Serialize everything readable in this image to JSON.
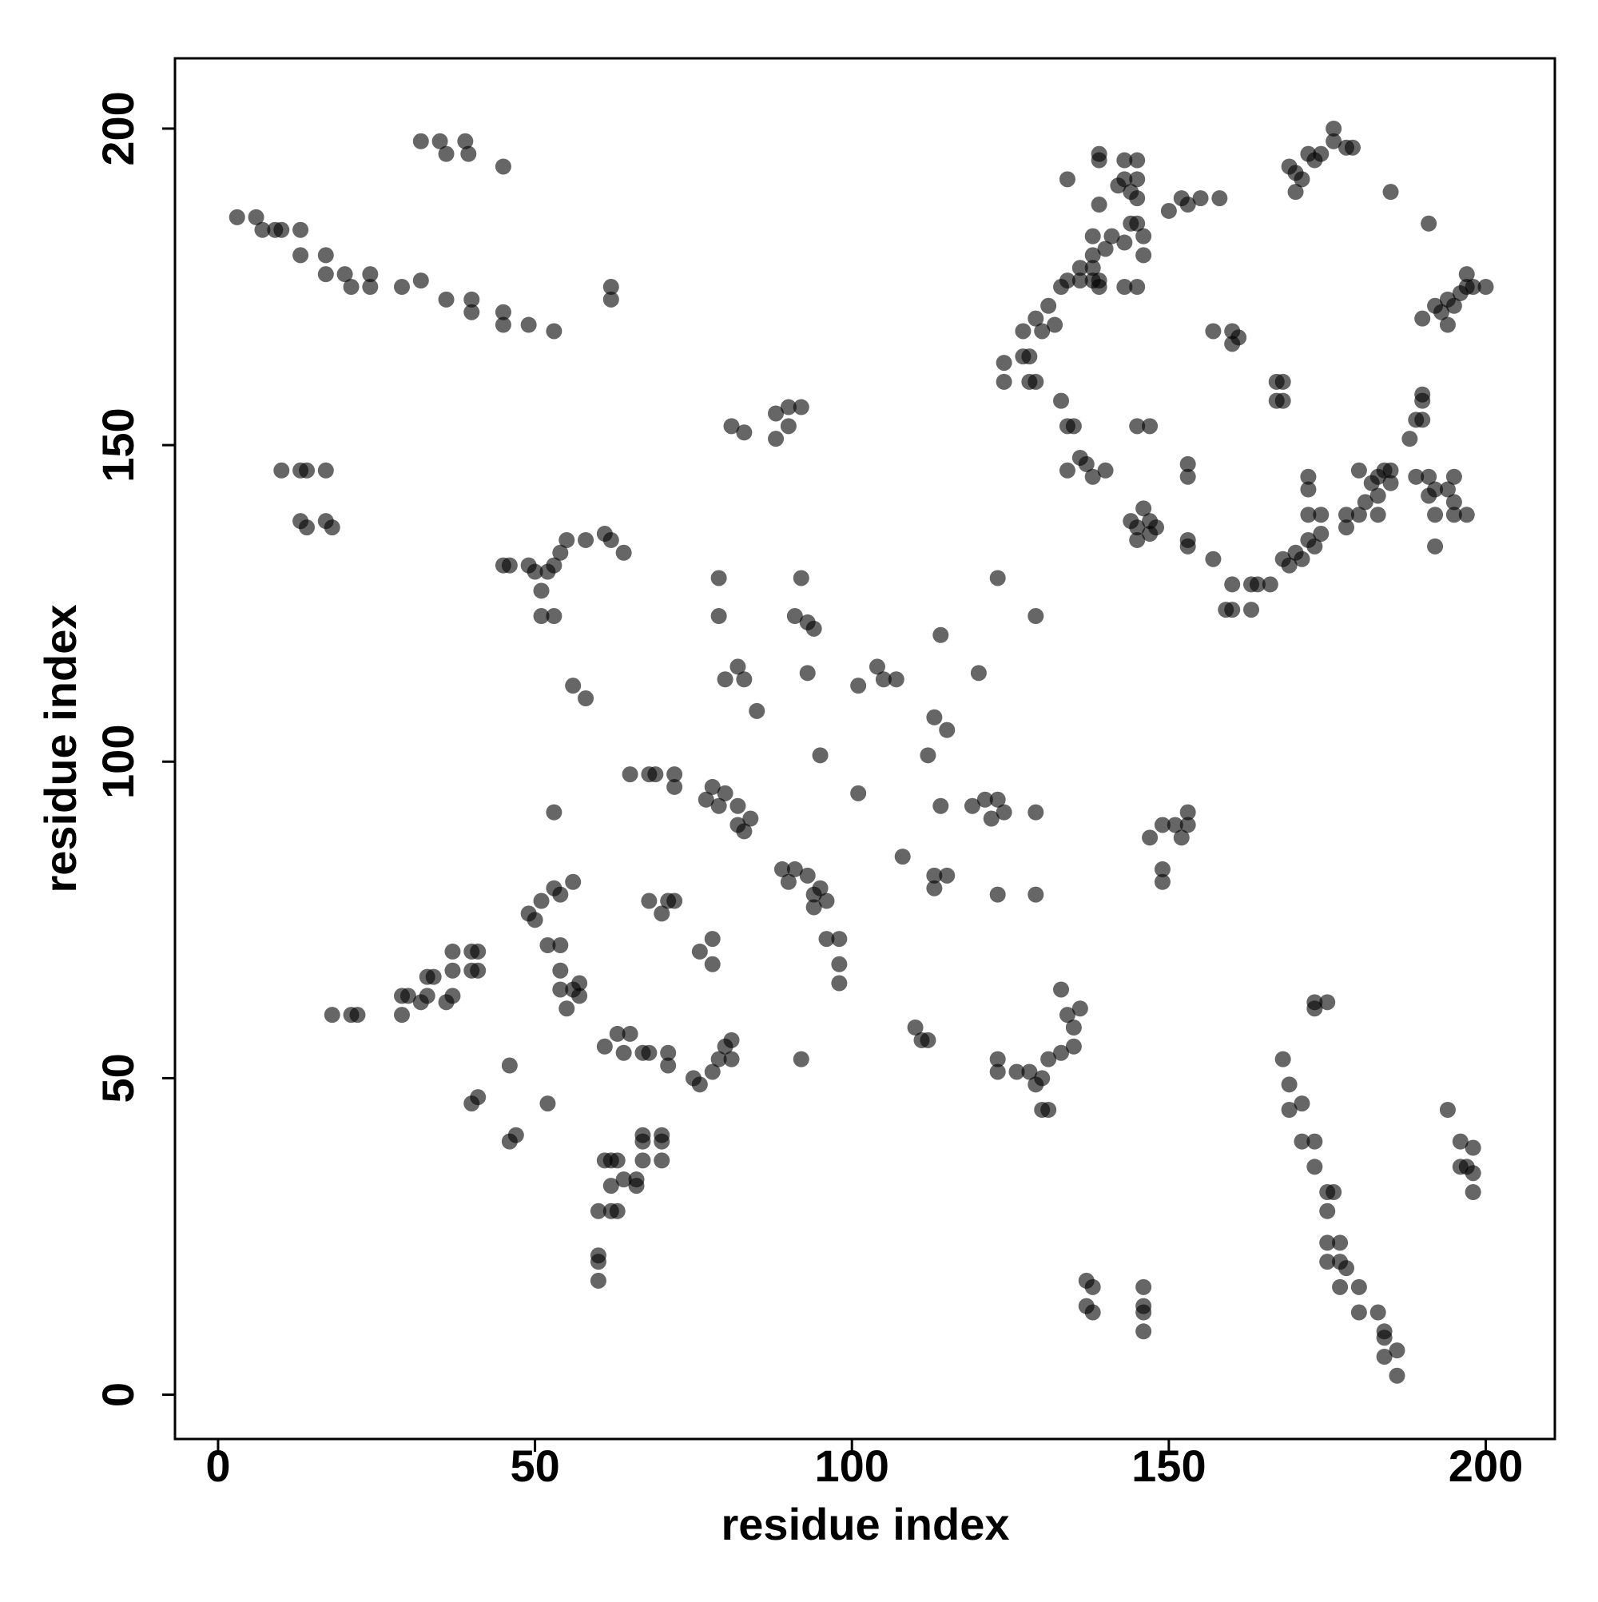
{
  "chart_data": {
    "type": "scatter",
    "xlabel": "residue index",
    "ylabel": "residue index",
    "xlim": [
      -6.8,
      210.9
    ],
    "ylim": [
      -7.0,
      211.1
    ],
    "xticks": [
      0,
      50,
      100,
      150,
      200
    ],
    "yticks": [
      0,
      50,
      100,
      150,
      200
    ],
    "color": "#000000",
    "alpha": 0.6,
    "grid": false,
    "x": [
      32,
      35,
      36,
      39,
      39.5,
      45,
      3,
      6,
      7,
      9,
      10,
      13,
      13,
      17,
      17,
      20,
      21,
      24,
      24,
      29,
      32,
      36,
      40,
      40,
      45,
      45,
      49,
      53,
      62,
      62,
      10,
      13,
      14,
      17,
      13,
      14,
      17,
      18,
      45,
      46,
      49,
      50,
      51,
      52,
      53,
      54,
      55,
      58,
      61,
      62,
      64,
      51,
      53,
      56,
      58,
      79,
      79,
      81,
      83,
      88,
      90,
      92,
      88,
      90,
      92,
      91,
      93,
      94,
      93,
      80,
      82,
      83,
      85,
      95,
      101,
      104,
      105,
      107,
      114,
      120,
      123,
      129,
      113,
      112,
      115,
      65,
      68,
      69,
      72,
      72,
      78,
      77,
      79,
      80,
      82,
      82,
      84,
      83,
      53,
      101,
      108,
      114,
      119,
      121,
      123,
      124,
      122,
      129,
      113,
      115,
      113,
      123,
      129,
      89,
      90,
      91,
      93,
      94,
      95,
      94,
      96,
      96,
      98,
      98,
      98,
      92,
      49,
      51,
      53,
      54,
      56,
      50,
      52,
      54,
      54,
      54,
      56,
      55,
      57,
      57,
      68,
      71,
      72,
      70,
      76,
      78,
      78,
      18,
      21,
      22,
      29,
      29,
      30,
      32,
      33,
      33,
      34,
      36,
      37,
      37,
      37,
      40,
      41,
      41,
      40,
      40,
      41,
      46,
      46,
      47,
      52,
      61,
      63,
      65,
      64,
      67,
      68,
      71,
      71,
      75,
      76,
      78,
      79,
      80,
      81,
      81,
      61,
      62,
      63,
      62,
      64,
      66,
      66,
      67,
      67,
      70,
      70,
      67,
      70,
      60,
      62,
      63,
      60,
      60,
      60,
      110,
      111,
      112,
      126,
      128,
      123,
      123,
      129,
      130,
      131,
      131,
      130,
      133,
      135,
      135,
      134,
      136,
      133,
      147,
      149,
      151,
      153,
      153,
      152,
      149,
      149,
      137,
      138,
      137,
      138,
      146,
      146,
      146,
      146,
      168,
      169,
      169,
      171,
      171,
      173,
      173,
      175,
      176,
      175,
      175,
      177,
      175,
      177,
      178,
      177,
      180,
      180,
      183,
      184,
      184,
      184,
      186,
      186,
      194,
      196,
      196,
      197,
      198,
      198,
      198,
      173,
      175,
      173,
      134,
      139,
      139,
      143,
      145,
      143,
      145,
      142,
      144,
      145,
      139,
      141,
      138,
      140,
      138,
      136,
      138,
      144,
      145,
      146,
      146,
      143,
      136,
      138,
      139,
      139,
      143,
      145,
      134,
      133,
      131,
      129,
      127,
      130,
      132,
      124,
      124,
      127,
      128,
      128,
      129,
      133,
      134,
      135,
      145,
      147,
      134,
      136,
      137,
      138,
      140,
      144,
      145,
      147,
      148,
      145,
      146,
      147,
      150,
      152,
      153,
      155,
      158,
      153,
      153,
      153,
      153,
      157,
      157,
      160,
      161,
      160,
      159,
      160,
      160,
      163,
      163,
      164,
      166,
      167,
      168,
      167,
      168,
      169,
      170,
      171,
      172,
      173,
      174,
      176,
      176,
      178,
      179,
      170,
      168,
      169,
      170,
      171,
      172,
      173,
      172,
      174,
      172,
      172,
      174,
      178,
      178,
      180,
      181,
      180,
      182,
      183,
      183,
      184,
      185,
      185,
      183,
      188,
      189,
      190,
      190,
      190,
      189,
      191,
      192,
      191,
      192,
      192,
      195,
      195,
      195,
      197,
      194,
      190,
      192,
      193,
      194,
      195,
      196,
      197,
      197,
      198,
      200,
      194,
      191,
      185
    ],
    "values": [
      198,
      198,
      196,
      198,
      196,
      194,
      186,
      186,
      184,
      184,
      184,
      184,
      180,
      180,
      177,
      177,
      175,
      177,
      175,
      175,
      176,
      173,
      173,
      171,
      171,
      169,
      169,
      168,
      175,
      173,
      146,
      146,
      146,
      146,
      138,
      137,
      138,
      137,
      131,
      131,
      131,
      130,
      127,
      130,
      131,
      133,
      135,
      135,
      136,
      135,
      133,
      123,
      123,
      112,
      110,
      129,
      123,
      153,
      152,
      151,
      156,
      156,
      155,
      153,
      129,
      123,
      122,
      121,
      114,
      113,
      115,
      113,
      108,
      101,
      112,
      115,
      113,
      113,
      120,
      114,
      129,
      123,
      107,
      101,
      105,
      98,
      98,
      98,
      98,
      96,
      96,
      94,
      93,
      95,
      93,
      90,
      91,
      89,
      92,
      95,
      85,
      93,
      93,
      94,
      94,
      92,
      91,
      92,
      82,
      82,
      80,
      79,
      79,
      83,
      81,
      83,
      82,
      79,
      80,
      77,
      78,
      72,
      72,
      68,
      65,
      53,
      76,
      78,
      80,
      79,
      81,
      75,
      71,
      71,
      67,
      64,
      64,
      61,
      65,
      63,
      78,
      78,
      78,
      76,
      70,
      72,
      68,
      60,
      60,
      60,
      60,
      63,
      63,
      62,
      63,
      66,
      66,
      62,
      63,
      67,
      70,
      70,
      70,
      67,
      67,
      46,
      47,
      52,
      40,
      41,
      46,
      55,
      57,
      57,
      54,
      54,
      54,
      54,
      52,
      50,
      49,
      51,
      53,
      55,
      56,
      53,
      37,
      37,
      37,
      33,
      34,
      34,
      33,
      37,
      41,
      41,
      37,
      40,
      40,
      29,
      29,
      29,
      22,
      21,
      18,
      58,
      56,
      56,
      51,
      51,
      53,
      51,
      49,
      50,
      53,
      45,
      45,
      54,
      55,
      58,
      60,
      61,
      64,
      88,
      90,
      90,
      92,
      90,
      88,
      83,
      81,
      18,
      17,
      14,
      13,
      17,
      14,
      13,
      10,
      53,
      49,
      45,
      46,
      40,
      40,
      36,
      32,
      32,
      29,
      24,
      24,
      21,
      21,
      20,
      17,
      17,
      13,
      13,
      10,
      9,
      6,
      7,
      3,
      45,
      40,
      36,
      36,
      39,
      35,
      32,
      62,
      62,
      61,
      192,
      196,
      195,
      195,
      195,
      192,
      192,
      191,
      190,
      189,
      188,
      183,
      183,
      181,
      180,
      178,
      178,
      185,
      185,
      183,
      180,
      182,
      176,
      176,
      175,
      176,
      175,
      175,
      176,
      175,
      172,
      170,
      168,
      168,
      169,
      163,
      160,
      164,
      164,
      160,
      160,
      157,
      153,
      153,
      153,
      153,
      146,
      148,
      147,
      145,
      146,
      138,
      137,
      138,
      137,
      135,
      140,
      136,
      187,
      189,
      188,
      189,
      189,
      147,
      145,
      135,
      134,
      132,
      168,
      168,
      167,
      166,
      124,
      128,
      124,
      124,
      128,
      128,
      128,
      160,
      160,
      157,
      157,
      194,
      193,
      192,
      196,
      195,
      196,
      200,
      198,
      197,
      197,
      190,
      132,
      131,
      133,
      132,
      135,
      134,
      139,
      139,
      145,
      143,
      136,
      139,
      137,
      139,
      141,
      146,
      144,
      145,
      142,
      146,
      146,
      144,
      139,
      151,
      154,
      157,
      154,
      158,
      145,
      145,
      143,
      142,
      139,
      134,
      145,
      141,
      139,
      139,
      143,
      170,
      172,
      171,
      173,
      172,
      174,
      175,
      177,
      175,
      175,
      169,
      185,
      190
    ]
  }
}
